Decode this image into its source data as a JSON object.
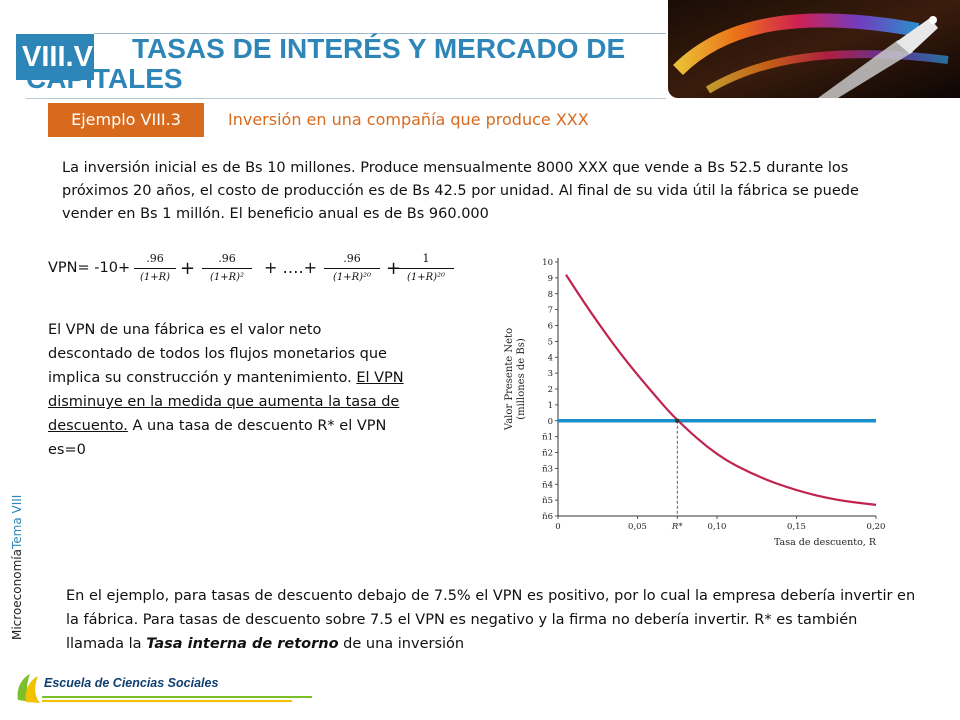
{
  "header": {
    "chapter": "VIII.V",
    "title": "TASAS DE INTERÉS Y MERCADO DE CAPITALES"
  },
  "example": {
    "badge": "Ejemplo VIII.3",
    "title": "Inversión en una compañía que produce XXX"
  },
  "intro_text": "La inversión inicial es de Bs 10 millones. Produce mensualmente 8000 XXX que vende a Bs 52.5 durante los próximos 20 años, el costo de producción es de Bs 42.5 por unidad. Al final de su vida útil la fábrica se puede vender en Bs 1 millón. El beneficio anual es de Bs 960.000",
  "formula": {
    "prefix": "VPN= -10+",
    "terms": [
      {
        "num": ".96",
        "den": "(1+R)"
      },
      {
        "num": ".96",
        "den": "(1+R)²"
      },
      {
        "num": ".96",
        "den": "(1+R)²⁰"
      },
      {
        "num": "1",
        "den": "(1+R)²⁰"
      }
    ],
    "plus": "+",
    "ellipsis": "+ ….+"
  },
  "explanation": {
    "part1": "El VPN de una fábrica es el valor neto descontado de todos los flujos monetarios que implica su construcción y mantenimiento. ",
    "underlined": "El VPN disminuye en la medida que aumenta la tasa de descuento.",
    "part2": " A una tasa de descuento R* el VPN es=0"
  },
  "conclusion": {
    "part1": "En el ejemplo, para tasas de descuento debajo de 7.5% el VPN es positivo, por lo cual la empresa debería invertir en la fábrica. Para tasas de descuento sobre 7.5 el VPN es negativo y la firma no debería invertir. R* es también llamada la ",
    "emphasis": "Tasa interna de retorno",
    "part2": " de una inversión"
  },
  "side_label": {
    "main": "Microeconomía",
    "sub": "Tema VIII"
  },
  "footer": {
    "school": "Escuela de Ciencias Sociales"
  },
  "chart_data": {
    "type": "line",
    "ylabel_line1": "Valor Presente Neto",
    "ylabel_line2": "(millones de Bs)",
    "xlabel": "Tasa de descuento, R",
    "xlim": [
      0,
      0.2
    ],
    "ylim": [
      -6,
      10
    ],
    "x_ticks": [
      {
        "value": 0,
        "label": "0"
      },
      {
        "value": 0.05,
        "label": "0,05"
      },
      {
        "value": 0.075,
        "label": "R*"
      },
      {
        "value": 0.1,
        "label": "0,10"
      },
      {
        "value": 0.15,
        "label": "0,15"
      },
      {
        "value": 0.2,
        "label": "0,20"
      }
    ],
    "y_ticks": [
      {
        "value": 10,
        "label": "10"
      },
      {
        "value": 9,
        "label": "9"
      },
      {
        "value": 8,
        "label": "8"
      },
      {
        "value": 7,
        "label": "7"
      },
      {
        "value": 6,
        "label": "6"
      },
      {
        "value": 5,
        "label": "5"
      },
      {
        "value": 4,
        "label": "4"
      },
      {
        "value": 3,
        "label": "3"
      },
      {
        "value": 2,
        "label": "2"
      },
      {
        "value": 1,
        "label": "1"
      },
      {
        "value": 0,
        "label": "0"
      },
      {
        "value": -1,
        "label": "ñ1"
      },
      {
        "value": -2,
        "label": "ñ2"
      },
      {
        "value": -3,
        "label": "ñ3"
      },
      {
        "value": -4,
        "label": "ñ4"
      },
      {
        "value": -5,
        "label": "ñ5"
      },
      {
        "value": -6,
        "label": "ñ6"
      }
    ],
    "series": [
      {
        "color": "#c0234e",
        "points": [
          [
            0.005,
            9.2
          ],
          [
            0.02,
            6.9
          ],
          [
            0.04,
            4.1
          ],
          [
            0.06,
            1.7
          ],
          [
            0.075,
            0.0
          ],
          [
            0.1,
            -2.2
          ],
          [
            0.125,
            -3.5
          ],
          [
            0.15,
            -4.4
          ],
          [
            0.175,
            -5.0
          ],
          [
            0.2,
            -5.3
          ]
        ]
      }
    ],
    "zero_line": {
      "value": 0,
      "color": "#1a8fcb"
    },
    "r_star": 0.075
  },
  "colors": {
    "accent_blue": "#2e86b8",
    "accent_orange": "#d86a1e",
    "curve": "#c0234e",
    "zero_line": "#1a8fcb"
  }
}
